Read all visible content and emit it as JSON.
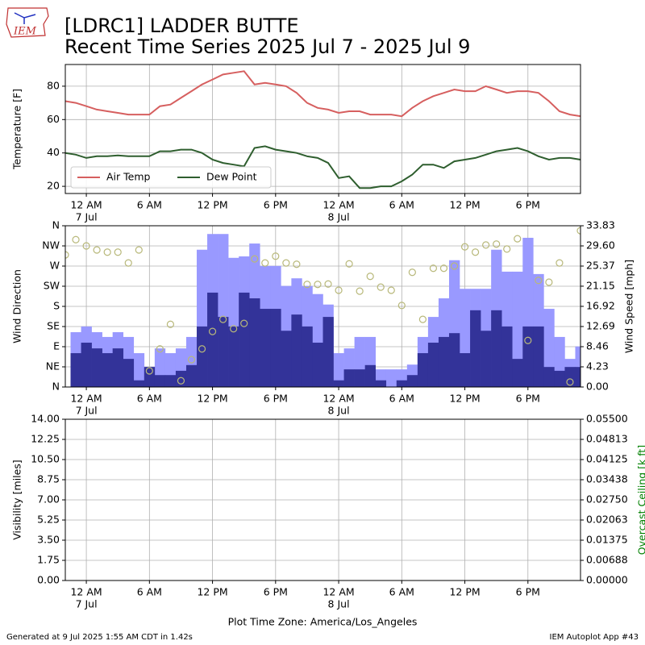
{
  "logo": "IEM",
  "title": "[LDRC1] LADDER BUTTE",
  "subtitle": "Recent Time Series 2025 Jul 7 - 2025 Jul 9",
  "x_label": "Plot Time Zone: America/Los_Angeles",
  "footer_left": "Generated at 9 Jul 2025 1:55 AM CDT in 1.42s",
  "footer_right": "IEM Autoplot App #43",
  "chart_data": [
    {
      "type": "line",
      "ylabel": "Temperature [F]",
      "grid": true,
      "legend": "lower left",
      "xlim": [
        "2025-07-06 22:00",
        "2025-07-08 23:00"
      ],
      "xticks": [
        {
          "value": "2025-07-07 00:00",
          "label": "12 AM",
          "date": "7 Jul"
        },
        {
          "value": "2025-07-07 06:00",
          "label": "6 AM"
        },
        {
          "value": "2025-07-07 12:00",
          "label": "12 PM"
        },
        {
          "value": "2025-07-07 18:00",
          "label": "6 PM"
        },
        {
          "value": "2025-07-08 00:00",
          "label": "12 AM",
          "date": "8 Jul"
        },
        {
          "value": "2025-07-08 06:00",
          "label": "6 AM"
        },
        {
          "value": "2025-07-08 12:00",
          "label": "12 PM"
        },
        {
          "value": "2025-07-08 18:00",
          "label": "6 PM"
        }
      ],
      "ylim": [
        15.7,
        93
      ],
      "yticks": [
        20,
        40,
        60,
        80
      ],
      "x": [
        "2025-07-06 22:00",
        "2025-07-06 23:00",
        "2025-07-07 00:00",
        "2025-07-07 01:00",
        "2025-07-07 02:00",
        "2025-07-07 03:00",
        "2025-07-07 04:00",
        "2025-07-07 05:00",
        "2025-07-07 06:00",
        "2025-07-07 07:00",
        "2025-07-07 08:00",
        "2025-07-07 09:00",
        "2025-07-07 10:00",
        "2025-07-07 11:00",
        "2025-07-07 12:00",
        "2025-07-07 13:00",
        "2025-07-07 14:00",
        "2025-07-07 15:00",
        "2025-07-07 16:00",
        "2025-07-07 17:00",
        "2025-07-07 18:00",
        "2025-07-07 19:00",
        "2025-07-07 20:00",
        "2025-07-07 21:00",
        "2025-07-07 22:00",
        "2025-07-07 23:00",
        "2025-07-08 00:00",
        "2025-07-08 01:00",
        "2025-07-08 02:00",
        "2025-07-08 03:00",
        "2025-07-08 04:00",
        "2025-07-08 05:00",
        "2025-07-08 06:00",
        "2025-07-08 07:00",
        "2025-07-08 08:00",
        "2025-07-08 09:00",
        "2025-07-08 10:00",
        "2025-07-08 11:00",
        "2025-07-08 12:00",
        "2025-07-08 13:00",
        "2025-07-08 14:00",
        "2025-07-08 15:00",
        "2025-07-08 16:00",
        "2025-07-08 17:00",
        "2025-07-08 18:00",
        "2025-07-08 19:00",
        "2025-07-08 20:00",
        "2025-07-08 21:00",
        "2025-07-08 22:00",
        "2025-07-08 23:00"
      ],
      "series": [
        {
          "name": "Air Temp",
          "color": "#d65f5f",
          "values": [
            71,
            70,
            68,
            66,
            65,
            64,
            63,
            63,
            63,
            68,
            69,
            73,
            77,
            81,
            84,
            87,
            88,
            89,
            81,
            82,
            81,
            80,
            76,
            70,
            67,
            66,
            64,
            65,
            65,
            63,
            63,
            63,
            62,
            67,
            71,
            74,
            76,
            78,
            77,
            77,
            80,
            78,
            76,
            77,
            77,
            76,
            71,
            65,
            63,
            62
          ]
        },
        {
          "name": "Dew Point",
          "color": "#2e5e2e",
          "values": [
            40,
            39,
            37,
            38,
            38,
            38.5,
            38,
            38,
            38,
            41,
            41,
            42,
            42,
            40,
            36,
            34,
            33,
            32,
            43,
            44,
            42,
            41,
            40,
            38,
            37,
            34,
            25,
            26,
            19,
            19,
            20,
            20,
            23,
            27,
            33,
            33,
            31,
            35,
            36,
            37,
            39,
            41,
            42,
            43,
            41,
            38,
            36,
            37,
            37,
            36
          ]
        }
      ]
    },
    {
      "type": "bar",
      "ylabel": "Wind Direction",
      "y2label": "Wind Speed [mph]",
      "grid": true,
      "xlim": [
        "2025-07-06 22:00",
        "2025-07-08 23:00"
      ],
      "xticks": [
        {
          "value": "2025-07-07 00:00",
          "label": "12 AM",
          "date": "7 Jul"
        },
        {
          "value": "2025-07-07 06:00",
          "label": "6 AM"
        },
        {
          "value": "2025-07-07 12:00",
          "label": "12 PM"
        },
        {
          "value": "2025-07-07 18:00",
          "label": "6 PM"
        },
        {
          "value": "2025-07-08 00:00",
          "label": "12 AM",
          "date": "8 Jul"
        },
        {
          "value": "2025-07-08 06:00",
          "label": "6 AM"
        },
        {
          "value": "2025-07-08 12:00",
          "label": "12 PM"
        },
        {
          "value": "2025-07-08 18:00",
          "label": "6 PM"
        }
      ],
      "ylim": [
        0,
        360
      ],
      "yticks": [
        {
          "value": 0,
          "label": "N"
        },
        {
          "value": 45,
          "label": "NE"
        },
        {
          "value": 90,
          "label": "E"
        },
        {
          "value": 135,
          "label": "SE"
        },
        {
          "value": 180,
          "label": "S"
        },
        {
          "value": 225,
          "label": "SW"
        },
        {
          "value": 270,
          "label": "W"
        },
        {
          "value": 315,
          "label": "NW"
        },
        {
          "value": 360,
          "label": "N"
        }
      ],
      "y2lim": [
        0,
        33.83
      ],
      "y2ticks": [
        {
          "value": 0,
          "label": "0.00"
        },
        4.23,
        8.46,
        12.69,
        16.92,
        21.15,
        25.37,
        {
          "value": 29.6,
          "label": "29.60"
        },
        33.83
      ],
      "x": [
        "2025-07-06 22:00",
        "2025-07-06 23:00",
        "2025-07-07 00:00",
        "2025-07-07 01:00",
        "2025-07-07 02:00",
        "2025-07-07 03:00",
        "2025-07-07 04:00",
        "2025-07-07 05:00",
        "2025-07-07 06:00",
        "2025-07-07 07:00",
        "2025-07-07 08:00",
        "2025-07-07 09:00",
        "2025-07-07 10:00",
        "2025-07-07 11:00",
        "2025-07-07 12:00",
        "2025-07-07 13:00",
        "2025-07-07 14:00",
        "2025-07-07 15:00",
        "2025-07-07 16:00",
        "2025-07-07 17:00",
        "2025-07-07 18:00",
        "2025-07-07 19:00",
        "2025-07-07 20:00",
        "2025-07-07 21:00",
        "2025-07-07 22:00",
        "2025-07-07 23:00",
        "2025-07-08 00:00",
        "2025-07-08 01:00",
        "2025-07-08 02:00",
        "2025-07-08 03:00",
        "2025-07-08 04:00",
        "2025-07-08 05:00",
        "2025-07-08 06:00",
        "2025-07-08 07:00",
        "2025-07-08 08:00",
        "2025-07-08 09:00",
        "2025-07-08 10:00",
        "2025-07-08 11:00",
        "2025-07-08 12:00",
        "2025-07-08 13:00",
        "2025-07-08 14:00",
        "2025-07-08 15:00",
        "2025-07-08 16:00",
        "2025-07-08 17:00",
        "2025-07-08 18:00",
        "2025-07-08 19:00",
        "2025-07-08 20:00",
        "2025-07-08 21:00",
        "2025-07-08 22:00",
        "2025-07-08 23:00"
      ],
      "series": [
        {
          "color": "#9999ff",
          "axis": "y2",
          "values": [
            null,
            11.5,
            12.7,
            11.5,
            10.5,
            11.5,
            10.5,
            7.1,
            4.2,
            8.1,
            7.1,
            8.1,
            10.5,
            28.8,
            32.1,
            32.1,
            27.1,
            27.4,
            30.1,
            25.4,
            25.4,
            21.2,
            22.8,
            21.2,
            19.5,
            17.3,
            7.1,
            8.1,
            10.5,
            10.5,
            3.7,
            3.7,
            3.7,
            4.7,
            10.5,
            14.7,
            18.6,
            26.6,
            20.6,
            20.6,
            20.6,
            28.8,
            24.2,
            24.2,
            31.3,
            23.7,
            16.4,
            10.5,
            5.9,
            8.5
          ]
        },
        {
          "color": "#333399",
          "axis": "y2",
          "values": [
            null,
            7.1,
            9.3,
            8.1,
            7.1,
            8.1,
            5.9,
            1.4,
            4.2,
            2.5,
            2.5,
            3.4,
            4.6,
            12.7,
            19.8,
            14.7,
            12.7,
            19.8,
            18.6,
            16.4,
            16.4,
            11.8,
            15.2,
            12.7,
            9.3,
            14.7,
            1.4,
            3.7,
            3.7,
            4.6,
            1.4,
            0,
            1.4,
            2.5,
            7.1,
            9.3,
            10.5,
            11.3,
            7.1,
            16.1,
            11.8,
            16.1,
            12.7,
            5.9,
            12.7,
            12.7,
            4.2,
            3.4,
            4.2,
            4.2
          ]
        },
        {
          "type": "scatter",
          "color": "#b8b87a",
          "values": [
            295,
            329,
            315,
            306,
            301,
            301,
            277,
            306,
            36,
            85,
            140,
            14,
            61,
            85,
            124,
            151,
            130,
            142,
            286,
            277,
            292,
            277,
            274,
            229,
            229,
            230,
            216,
            275,
            214,
            247,
            223,
            216,
            182,
            256,
            151,
            265,
            265,
            270,
            313,
            301,
            317,
            319,
            308,
            331,
            104,
            238,
            234,
            277,
            11,
            349
          ]
        }
      ]
    },
    {
      "type": "line",
      "ylabel": "Visibility [miles]",
      "y2label": "Overcast Ceiling [k ft]",
      "y2label_color": "#008000",
      "grid": true,
      "xlim": [
        "2025-07-06 22:00",
        "2025-07-08 23:00"
      ],
      "xticks": [
        {
          "value": "2025-07-07 00:00",
          "label": "12 AM",
          "date": "7 Jul"
        },
        {
          "value": "2025-07-07 06:00",
          "label": "6 AM"
        },
        {
          "value": "2025-07-07 12:00",
          "label": "12 PM"
        },
        {
          "value": "2025-07-07 18:00",
          "label": "6 PM"
        },
        {
          "value": "2025-07-08 00:00",
          "label": "12 AM",
          "date": "8 Jul"
        },
        {
          "value": "2025-07-08 06:00",
          "label": "6 AM"
        },
        {
          "value": "2025-07-08 12:00",
          "label": "12 PM"
        },
        {
          "value": "2025-07-08 18:00",
          "label": "6 PM"
        }
      ],
      "ylim": [
        0,
        14
      ],
      "yticks": [
        {
          "value": 0,
          "label": "0.00"
        },
        1.75,
        {
          "value": 3.5,
          "label": "3.50"
        },
        5.25,
        {
          "value": 7,
          "label": "7.00"
        },
        8.75,
        {
          "value": 10.5,
          "label": "10.50"
        },
        12.25,
        {
          "value": 14,
          "label": "14.00"
        }
      ],
      "y2lim": [
        0,
        0.055
      ],
      "y2ticks": [
        {
          "value": 0,
          "label": "0.00000"
        },
        0.00688,
        0.01375,
        0.02063,
        {
          "value": 0.0275,
          "label": "0.02750"
        },
        0.03438,
        0.04125,
        0.04813,
        {
          "value": 0.055,
          "label": "0.05500"
        }
      ],
      "series": []
    }
  ]
}
